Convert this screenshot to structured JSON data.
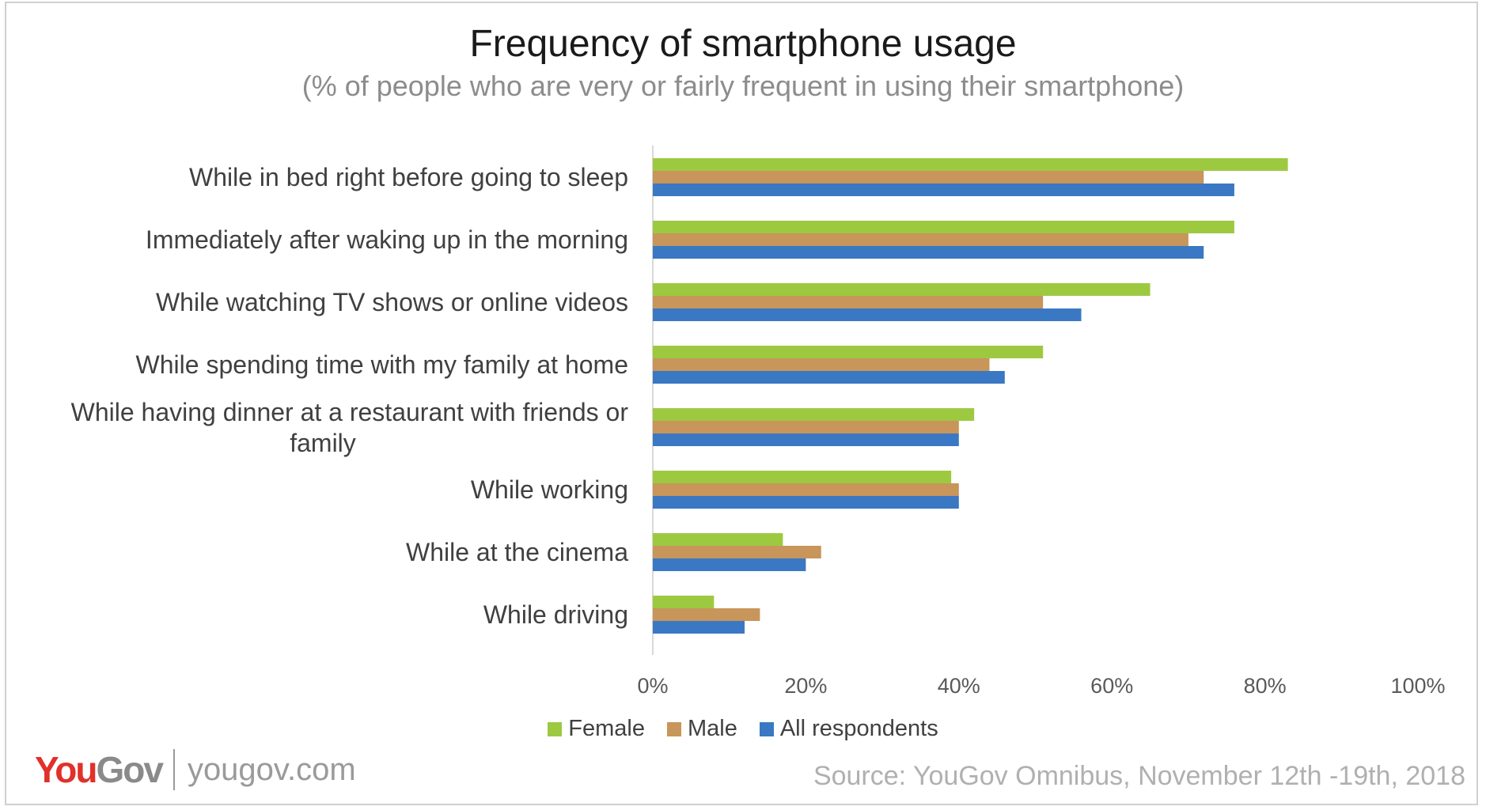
{
  "chart_data": {
    "type": "bar",
    "orientation": "horizontal",
    "title": "Frequency of smartphone usage",
    "subtitle": "(% of people who are very or fairly frequent in using their smartphone)",
    "categories": [
      "While in bed right before going to sleep",
      "Immediately after waking up in the morning",
      "While watching TV shows or online videos",
      "While spending time with my family at home",
      "While having dinner at a restaurant with friends or family",
      "While working",
      "While at the cinema",
      "While driving"
    ],
    "category_lines": [
      [
        "While in bed right before going to sleep"
      ],
      [
        "Immediately after waking up in the morning"
      ],
      [
        "While watching TV shows or online videos"
      ],
      [
        "While spending time with my family at home"
      ],
      [
        "While having dinner at a restaurant with friends or",
        "family"
      ],
      [
        "While working"
      ],
      [
        "While at the cinema"
      ],
      [
        "While driving"
      ]
    ],
    "series": [
      {
        "name": "Female",
        "color": "#9dc940",
        "values": [
          83,
          76,
          65,
          51,
          42,
          39,
          17,
          8
        ]
      },
      {
        "name": "Male",
        "color": "#c8955a",
        "values": [
          72,
          70,
          51,
          44,
          40,
          40,
          22,
          14
        ]
      },
      {
        "name": "All respondents",
        "color": "#3a78c3",
        "values": [
          76,
          72,
          56,
          46,
          40,
          40,
          20,
          12
        ]
      }
    ],
    "xlim": [
      0,
      100
    ],
    "xticks": [
      "0%",
      "20%",
      "40%",
      "60%",
      "80%",
      "100%"
    ],
    "legend_position": "bottom",
    "grid": false
  },
  "footer": {
    "brand_you": "You",
    "brand_gov": "Gov",
    "brand_url": "yougov.com",
    "source": "Source: YouGov Omnibus, November 12th -19th, 2018"
  }
}
